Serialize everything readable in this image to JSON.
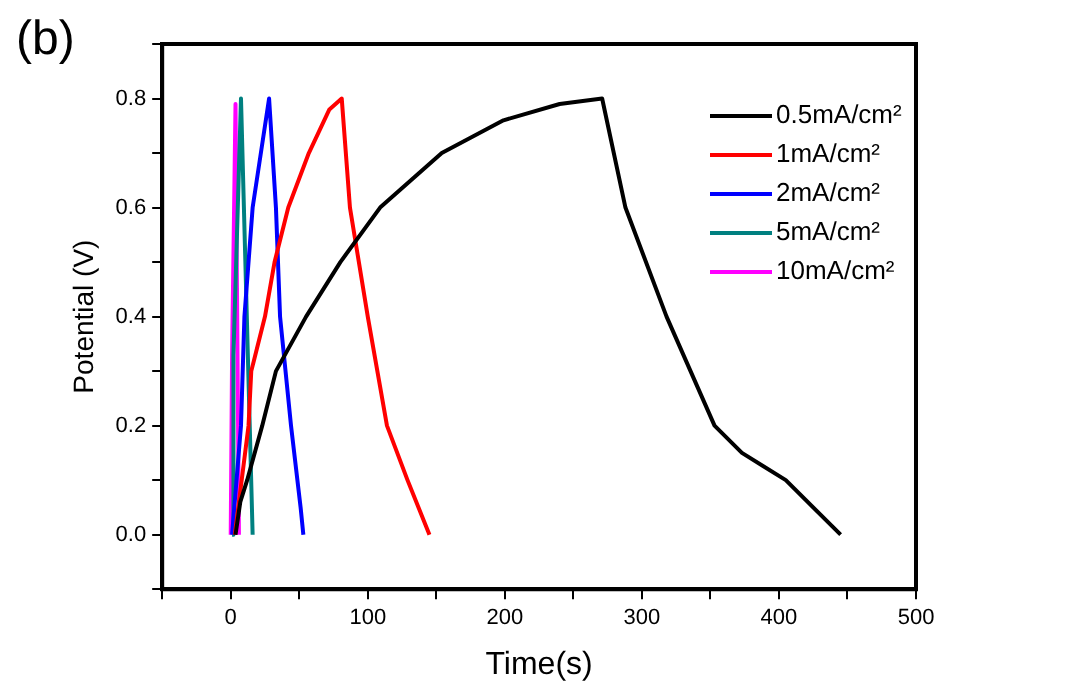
{
  "chart_data": {
    "type": "line",
    "xlabel": "Time(s)",
    "ylabel": "Potential (V)",
    "annotations": [
      "(b)"
    ],
    "xlim": [
      -50,
      500
    ],
    "xticks": [
      {
        "value": -50,
        "label": null
      },
      0,
      {
        "value": 50,
        "label": null
      },
      100,
      {
        "value": 150,
        "label": null
      },
      200,
      {
        "value": 250,
        "label": null
      },
      300,
      {
        "value": 350,
        "label": null
      },
      400,
      {
        "value": 450,
        "label": null
      },
      500
    ],
    "ylim": [
      -0.1,
      0.9
    ],
    "yticks": [
      {
        "value": -0.1,
        "label": null
      },
      {
        "value": 0,
        "label": "0.0"
      },
      {
        "value": 0.1,
        "label": null
      },
      0.2,
      {
        "value": 0.3,
        "label": null
      },
      0.4,
      {
        "value": 0.5,
        "label": null
      },
      0.6,
      {
        "value": 0.7,
        "label": null
      },
      0.8,
      {
        "value": 0.9,
        "label": null
      }
    ],
    "grid": false,
    "legend": "top right",
    "marker": "none",
    "line_style": "solid",
    "series": [
      {
        "name": "0.5mA/cm²",
        "color": "#000000",
        "x": [
          3.5,
          7,
          12,
          23,
          33,
          55,
          80,
          109,
          154,
          199,
          240,
          271,
          288,
          318,
          353,
          373,
          405,
          445
        ],
        "values": [
          0,
          0.06,
          0.1,
          0.2,
          0.3,
          0.4,
          0.5,
          0.6,
          0.7,
          0.76,
          0.79,
          0.8,
          0.6,
          0.4,
          0.2,
          0.15,
          0.1,
          0
        ]
      },
      {
        "name": "1mA/cm²",
        "color": "#ff0000",
        "x": [
          3,
          8,
          13,
          15,
          25,
          32,
          42,
          57,
          72,
          81,
          87,
          100,
          114,
          129,
          145
        ],
        "values": [
          0,
          0.1,
          0.2,
          0.3,
          0.4,
          0.5,
          0.6,
          0.7,
          0.78,
          0.8,
          0.6,
          0.4,
          0.2,
          0.1,
          0
        ]
      },
      {
        "name": "2mA/cm²",
        "color": "#0000ff",
        "x": [
          1,
          7.5,
          10,
          16,
          28,
          33,
          36,
          44,
          51,
          53
        ],
        "values": [
          0,
          0.2,
          0.4,
          0.6,
          0.8,
          0.6,
          0.4,
          0.2,
          0.05,
          0
        ]
      },
      {
        "name": "5mA/cm²",
        "color": "#008080",
        "x": [
          1,
          2,
          7.5,
          16
        ],
        "values": [
          0,
          0.33,
          0.8,
          0
        ]
      },
      {
        "name": "10mA/cm²",
        "color": "#ff00ff",
        "x": [
          0,
          1,
          3.5,
          6
        ],
        "values": [
          0,
          0.33,
          0.79,
          0
        ]
      }
    ]
  }
}
